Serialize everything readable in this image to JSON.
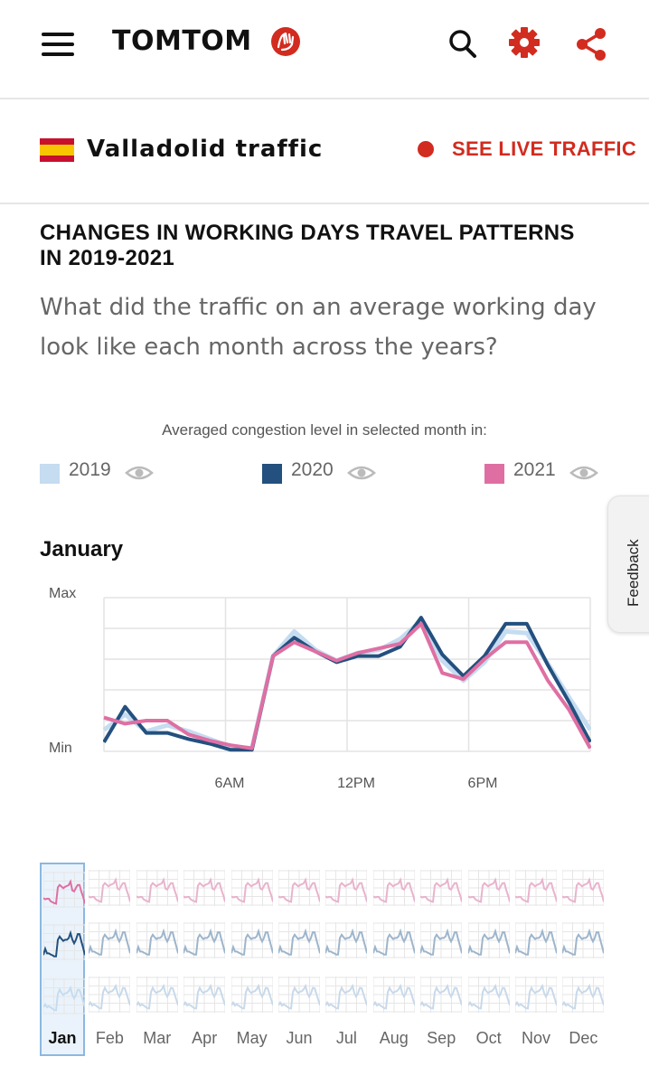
{
  "header": {
    "logo_text": "TOMTOM",
    "icons": [
      "menu-icon",
      "search-icon",
      "gear-icon",
      "share-icon"
    ]
  },
  "city": {
    "title": "Valladolid traffic",
    "live_label": "SEE LIVE TRAFFIC",
    "flag": "spain-flag"
  },
  "section": {
    "title": "CHANGES IN WORKING DAYS TRAVEL PATTERNS IN 2019-2021",
    "subtitle": "What did the traffic on an average working day look like each month across the years?"
  },
  "legend": {
    "caption": "Averaged congestion level in selected month in:",
    "items": [
      {
        "label": "2019",
        "color": "#c5dcf1"
      },
      {
        "label": "2020",
        "color": "#23507e"
      },
      {
        "label": "2021",
        "color": "#df6fa3"
      }
    ]
  },
  "feedback_label": "Feedback",
  "chart_data": {
    "type": "line",
    "title": "January",
    "y_ticks": [
      "Max",
      "Min"
    ],
    "x_ticks": [
      "6AM",
      "12PM",
      "6PM"
    ],
    "ylim": [
      0,
      100
    ],
    "x": [
      0,
      1,
      2,
      3,
      4,
      5,
      6,
      7,
      8,
      9,
      10,
      11,
      12,
      13,
      14,
      15,
      16,
      17,
      18,
      19,
      20,
      21,
      22,
      23
    ],
    "series": [
      {
        "name": "2019",
        "color": "#c5dcf1",
        "values": [
          14,
          24,
          13,
          17,
          13,
          8,
          3,
          2,
          62,
          78,
          66,
          59,
          64,
          66,
          73,
          85,
          59,
          46,
          58,
          78,
          77,
          57,
          35,
          14
        ]
      },
      {
        "name": "2020",
        "color": "#23507e",
        "values": [
          6,
          29,
          12,
          12,
          8,
          5,
          1,
          1,
          62,
          74,
          65,
          58,
          62,
          62,
          68,
          87,
          63,
          49,
          62,
          83,
          83,
          56,
          32,
          6
        ]
      },
      {
        "name": "2021",
        "color": "#df6fa3",
        "values": [
          22,
          18,
          20,
          20,
          11,
          7,
          4,
          2,
          62,
          71,
          65,
          59,
          64,
          67,
          70,
          83,
          51,
          47,
          60,
          71,
          71,
          46,
          27,
          2
        ]
      }
    ],
    "months": [
      "Jan",
      "Feb",
      "Mar",
      "Apr",
      "May",
      "Jun",
      "Jul",
      "Aug",
      "Sep",
      "Oct",
      "Nov",
      "Dec"
    ],
    "selected_month": "Jan"
  }
}
